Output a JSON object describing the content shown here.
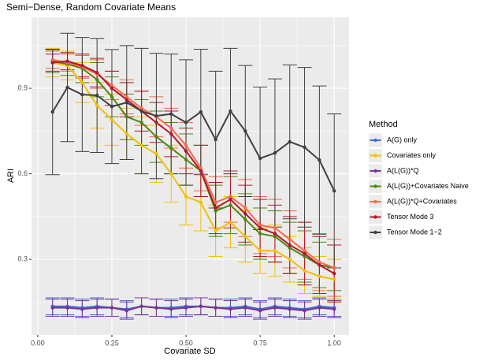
{
  "chart_data": {
    "type": "line",
    "title": "Semi−Dense, Random Covariate Means",
    "x_label": "Covariate SD",
    "y_label": "ARI",
    "legend_title": "Method",
    "legend": "right",
    "grid": true,
    "xlim": [
      -0.021,
      1.05
    ],
    "ylim": [
      0.035,
      1.149
    ],
    "xticks": [
      {
        "value": 0,
        "label": "0.00"
      },
      {
        "value": 0.25,
        "label": "0.25"
      },
      {
        "value": 0.5,
        "label": "0.50"
      },
      {
        "value": 0.75,
        "label": "0.75"
      },
      {
        "value": 1,
        "label": "1.00"
      }
    ],
    "yticks": [
      0.3,
      0.6,
      0.9
    ],
    "x_minor_grid": [
      0.125,
      0.375,
      0.625,
      0.875
    ],
    "y_minor_grid": [
      0.15,
      0.45,
      0.75,
      1.05
    ],
    "x": [
      0.05,
      0.1,
      0.15,
      0.2,
      0.25,
      0.3,
      0.35,
      0.4,
      0.45,
      0.5,
      0.55,
      0.6,
      0.65,
      0.7,
      0.75,
      0.8,
      0.85,
      0.9,
      0.95,
      1.0
    ],
    "series": [
      {
        "name": "A(G) only",
        "color": "#3d6fd6",
        "values": [
          0.135,
          0.135,
          0.13,
          0.135,
          0.13,
          0.125,
          0.135,
          0.13,
          0.13,
          0.135,
          0.135,
          0.13,
          0.13,
          0.135,
          0.125,
          0.135,
          0.13,
          0.125,
          0.135,
          0.13
        ],
        "errors": [
          0.03,
          0.03,
          0.03,
          0.03,
          0.03,
          0.03,
          0.03,
          0.03,
          0.03,
          0.03,
          0.03,
          0.03,
          0.03,
          0.03,
          0.03,
          0.03,
          0.03,
          0.03,
          0.03,
          0.03
        ]
      },
      {
        "name": "Covariates only",
        "color": "#f2bf00",
        "values": [
          0.99,
          0.98,
          0.92,
          0.84,
          0.79,
          0.74,
          0.7,
          0.67,
          0.6,
          0.52,
          0.5,
          0.4,
          0.43,
          0.38,
          0.33,
          0.33,
          0.3,
          0.26,
          0.24,
          0.23
        ],
        "errors": [
          0.05,
          0.05,
          0.07,
          0.08,
          0.09,
          0.09,
          0.1,
          0.1,
          0.1,
          0.1,
          0.1,
          0.09,
          0.09,
          0.09,
          0.08,
          0.09,
          0.08,
          0.08,
          0.07,
          0.07
        ]
      },
      {
        "name": "A(L(G))*Q",
        "color": "#7b3294",
        "values": [
          0.13,
          0.13,
          0.125,
          0.13,
          0.13,
          0.12,
          0.135,
          0.13,
          0.125,
          0.13,
          0.135,
          0.13,
          0.125,
          0.13,
          0.12,
          0.13,
          0.125,
          0.12,
          0.13,
          0.125
        ],
        "errors": [
          0.03,
          0.03,
          0.03,
          0.03,
          0.03,
          0.03,
          0.03,
          0.03,
          0.03,
          0.03,
          0.03,
          0.03,
          0.03,
          0.03,
          0.03,
          0.03,
          0.03,
          0.03,
          0.03,
          0.03
        ]
      },
      {
        "name": "A(L(G))+Covariates Naive",
        "color": "#4a8a0c",
        "values": [
          0.995,
          0.985,
          0.97,
          0.93,
          0.87,
          0.8,
          0.78,
          0.73,
          0.69,
          0.65,
          0.61,
          0.47,
          0.49,
          0.44,
          0.39,
          0.38,
          0.34,
          0.31,
          0.28,
          0.27
        ],
        "errors": [
          0.04,
          0.04,
          0.05,
          0.06,
          0.07,
          0.08,
          0.08,
          0.09,
          0.09,
          0.09,
          0.09,
          0.09,
          0.1,
          0.09,
          0.09,
          0.09,
          0.09,
          0.09,
          0.08,
          0.08
        ]
      },
      {
        "name": "A(L(G))*Q+Covariates",
        "color": "#f8694d",
        "values": [
          1.0,
          0.99,
          0.975,
          0.95,
          0.91,
          0.87,
          0.83,
          0.8,
          0.76,
          0.7,
          0.62,
          0.5,
          0.52,
          0.48,
          0.42,
          0.41,
          0.37,
          0.33,
          0.29,
          0.27
        ],
        "errors": [
          0.03,
          0.03,
          0.04,
          0.05,
          0.05,
          0.06,
          0.06,
          0.07,
          0.07,
          0.08,
          0.08,
          0.09,
          0.09,
          0.1,
          0.1,
          0.1,
          0.1,
          0.1,
          0.1,
          0.1
        ]
      },
      {
        "name": "Tensor Mode 3",
        "color": "#b2182b",
        "values": [
          0.99,
          0.995,
          0.98,
          0.955,
          0.9,
          0.86,
          0.82,
          0.78,
          0.74,
          0.68,
          0.61,
          0.48,
          0.51,
          0.46,
          0.41,
          0.39,
          0.35,
          0.32,
          0.28,
          0.25
        ],
        "errors": [
          0.03,
          0.03,
          0.04,
          0.05,
          0.06,
          0.06,
          0.07,
          0.07,
          0.08,
          0.08,
          0.09,
          0.09,
          0.1,
          0.1,
          0.1,
          0.1,
          0.1,
          0.11,
          0.1,
          0.1
        ]
      },
      {
        "name": "Tensor Mode 1−2",
        "color": "#404040",
        "values": [
          0.817,
          0.903,
          0.878,
          0.875,
          0.836,
          0.85,
          0.82,
          0.803,
          0.81,
          0.78,
          0.817,
          0.72,
          0.82,
          0.75,
          0.654,
          0.673,
          0.712,
          0.693,
          0.648,
          0.54
        ],
        "errors": [
          0.22,
          0.19,
          0.2,
          0.2,
          0.2,
          0.2,
          0.22,
          0.22,
          0.21,
          0.22,
          0.22,
          0.24,
          0.22,
          0.23,
          0.25,
          0.26,
          0.27,
          0.28,
          0.26,
          0.27
        ]
      }
    ]
  }
}
